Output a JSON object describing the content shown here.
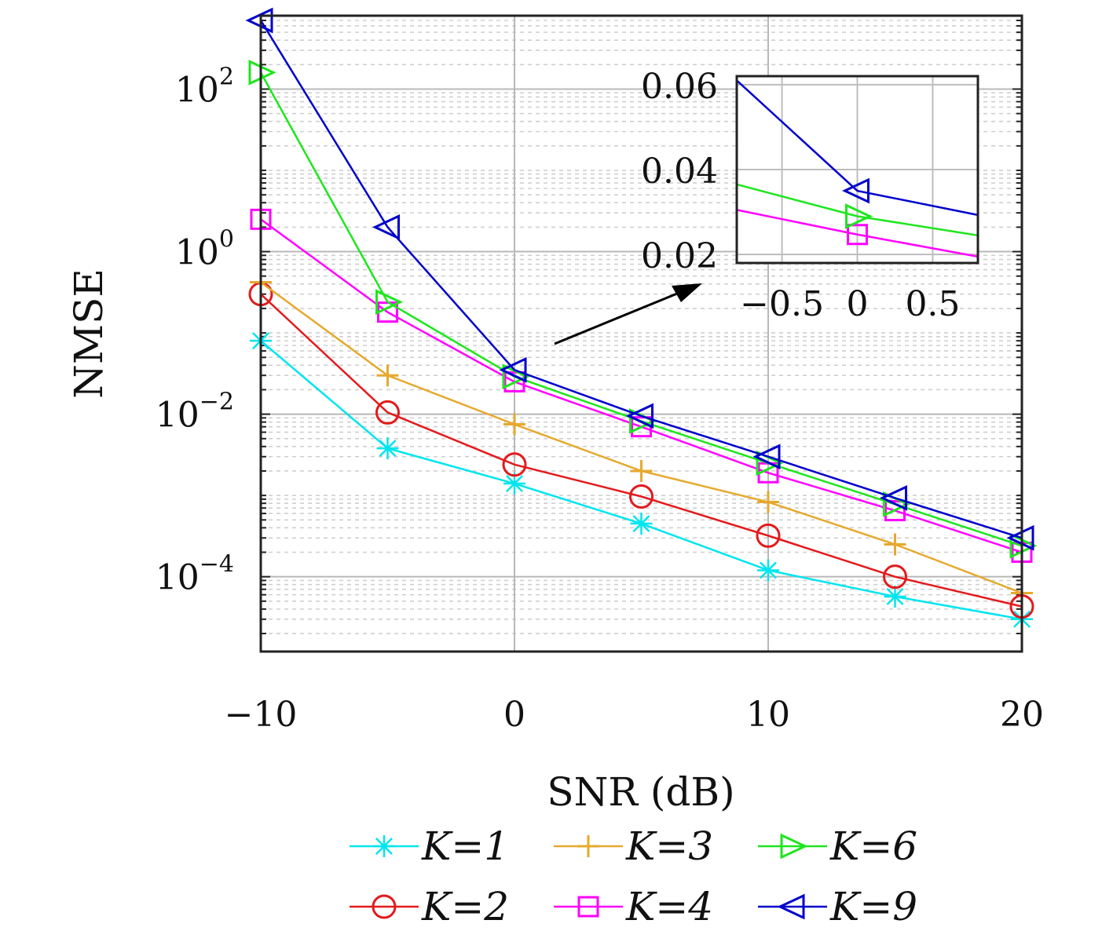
{
  "chart_data": [
    {
      "type": "line",
      "xlabel": "SNR (dB)",
      "ylabel": "NMSE",
      "yscale": "log",
      "xlim": [
        -10,
        20
      ],
      "ylim": [
        1.2e-05,
        800
      ],
      "x_ticks": [
        -10,
        0,
        10,
        20
      ],
      "x_tick_labels": [
        "−10",
        "0",
        "10",
        "20"
      ],
      "y_ticks": [
        {
          "value": 100,
          "base": "10",
          "exp": "2"
        },
        {
          "value": 1,
          "base": "10",
          "exp": "0"
        },
        {
          "value": 0.01,
          "base": "10",
          "exp": "−2"
        },
        {
          "value": 0.0001,
          "base": "10",
          "exp": "−4"
        }
      ],
      "grid": true,
      "minor_grid": true,
      "legend_position": "bottom",
      "x": [
        -10,
        -5,
        0,
        5,
        10,
        15,
        20
      ],
      "series": [
        {
          "name": "K=1",
          "color": "#00e5ee",
          "marker": "asterisk",
          "values": [
            0.08,
            0.0038,
            0.0014,
            0.00045,
            0.00012,
            5.7e-05,
            3e-05
          ]
        },
        {
          "name": "K=2",
          "color": "#e31a1c",
          "marker": "circle",
          "values": [
            0.3,
            0.0105,
            0.0024,
            0.00097,
            0.00032,
            0.0001,
            4.3e-05
          ]
        },
        {
          "name": "K=3",
          "color": "#e6a92e",
          "marker": "plus",
          "values": [
            0.42,
            0.03,
            0.0075,
            0.002,
            0.00083,
            0.00025,
            6.3e-05
          ]
        },
        {
          "name": "K=4",
          "color": "#ff00ff",
          "marker": "square",
          "values": [
            2.5,
            0.18,
            0.025,
            0.007,
            0.0019,
            0.00065,
            0.0002
          ]
        },
        {
          "name": "K=6",
          "color": "#1ee61e",
          "marker": "triangle-right",
          "values": [
            160,
            0.24,
            0.029,
            0.0082,
            0.0025,
            0.00078,
            0.00024
          ]
        },
        {
          "name": "K=9",
          "color": "#0000cc",
          "marker": "triangle-left",
          "values": [
            700,
            2.0,
            0.035,
            0.0095,
            0.003,
            0.00093,
            0.0003
          ]
        }
      ]
    },
    {
      "type": "line",
      "role": "inset",
      "xlim": [
        -0.8,
        0.8
      ],
      "ylim": [
        0.018,
        0.062
      ],
      "x_ticks": [
        -0.5,
        0,
        0.5
      ],
      "x_tick_labels": [
        "−0.5",
        "0",
        "0.5"
      ],
      "y_ticks": [
        0.02,
        0.04,
        0.06
      ],
      "y_tick_labels": [
        "0.02",
        "0.04",
        "0.06"
      ],
      "grid": true,
      "x": [
        -0.8,
        0,
        0.8
      ],
      "series": [
        {
          "name": "K=4",
          "color": "#ff00ff",
          "marker": "square",
          "values": [
            0.0305,
            0.0247,
            0.0195
          ]
        },
        {
          "name": "K=6",
          "color": "#1ee61e",
          "marker": "triangle-right",
          "values": [
            0.0365,
            0.029,
            0.0245
          ]
        },
        {
          "name": "K=9",
          "color": "#0000cc",
          "marker": "triangle-left",
          "values": [
            0.061,
            0.035,
            0.0293
          ]
        }
      ]
    }
  ]
}
